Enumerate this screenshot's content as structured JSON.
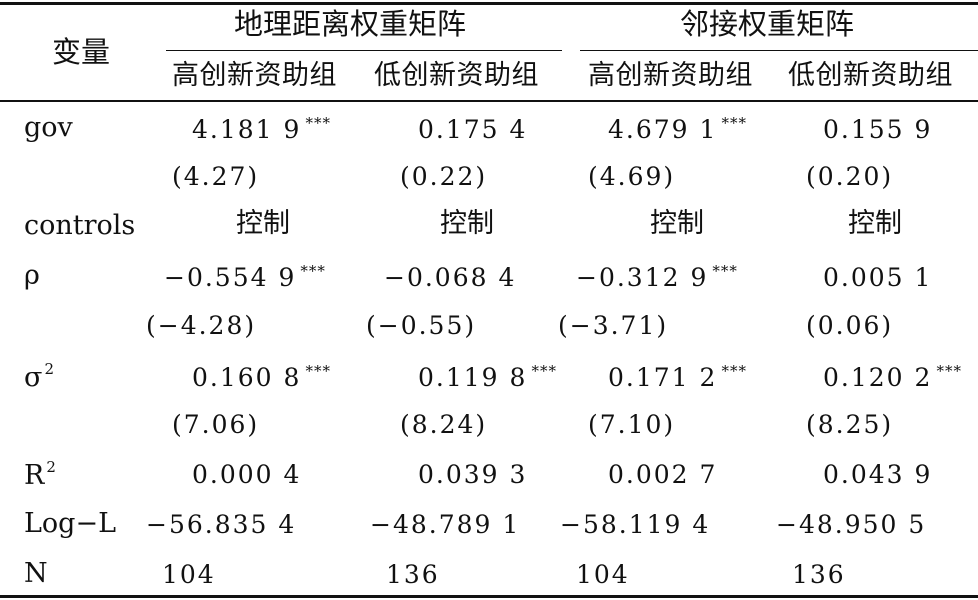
{
  "header": {
    "variable_label": "变量",
    "group_geo": "地理距离权重矩阵",
    "group_adj": "邻接权重矩阵",
    "sub_high_geo": "高创新资助组",
    "sub_low_geo": "低创新资助组",
    "sub_high_adj": "高创新资助组",
    "sub_low_adj": "低创新资助组"
  },
  "rows": {
    "gov": {
      "label": "gov",
      "coef": [
        "4.181 9",
        "0.175 4",
        "4.679 1",
        "0.155 9"
      ],
      "coef_stars": [
        "***",
        "",
        "***",
        ""
      ],
      "t": [
        "(4.27)",
        "(0.22)",
        "(4.69)",
        "(0.20)"
      ]
    },
    "controls": {
      "label": "controls",
      "values": [
        "控制",
        "控制",
        "控制",
        "控制"
      ]
    },
    "rho": {
      "label": "ρ",
      "coef": [
        "−0.554 9",
        "−0.068 4",
        "−0.312 9",
        "0.005 1"
      ],
      "coef_stars": [
        "***",
        "",
        "***",
        ""
      ],
      "t": [
        "(−4.28)",
        "(−0.55)",
        "(−3.71)",
        "(0.06)"
      ]
    },
    "sigma2": {
      "label": "σ",
      "label_sup": "2",
      "coef": [
        "0.160 8",
        "0.119 8",
        "0.171 2",
        "0.120 2"
      ],
      "coef_stars": [
        "***",
        "***",
        "***",
        "***"
      ],
      "t": [
        "(7.06)",
        "(8.24)",
        "(7.10)",
        "(8.25)"
      ]
    },
    "r2": {
      "label": "R",
      "label_sup": "2",
      "values": [
        "0.000 4",
        "0.039 3",
        "0.002 7",
        "0.043 9"
      ]
    },
    "logl": {
      "label": "Log−L",
      "values": [
        "−56.835 4",
        "−48.789 1",
        "−58.119 4",
        "−48.950 5"
      ]
    },
    "n": {
      "label": "N",
      "values": [
        "104",
        "136",
        "104",
        "136"
      ]
    }
  }
}
